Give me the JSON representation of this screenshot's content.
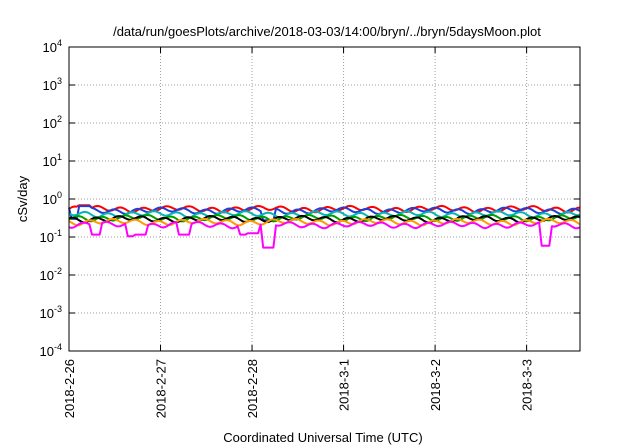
{
  "chart_data": {
    "type": "line",
    "title": "/data/run/goesPlots/archive/2018-03-03/14:00/bryn/../bryn/5daysMoon.plot",
    "xlabel": "Coordinated Universal Time (UTC)",
    "ylabel": "cSv/day",
    "yscale": "log",
    "ylim": [
      0.0001,
      10000
    ],
    "xlim": [
      "2018-02-26T00:00",
      "2018-03-03T14:00"
    ],
    "grid": true,
    "yticks": [
      {
        "value": 0.0001,
        "base": "10",
        "exp": "-4"
      },
      {
        "value": 0.001,
        "base": "10",
        "exp": "-3"
      },
      {
        "value": 0.01,
        "base": "10",
        "exp": "-2"
      },
      {
        "value": 0.1,
        "base": "10",
        "exp": "-1"
      },
      {
        "value": 1,
        "base": "10",
        "exp": "0"
      },
      {
        "value": 10,
        "base": "10",
        "exp": "1"
      },
      {
        "value": 100,
        "base": "10",
        "exp": "2"
      },
      {
        "value": 1000,
        "base": "10",
        "exp": "3"
      },
      {
        "value": 10000,
        "base": "10",
        "exp": "4"
      }
    ],
    "xticks": [
      {
        "value": "2018-02-26T00:00",
        "label": "2018-2-26"
      },
      {
        "value": "2018-02-27T00:00",
        "label": "2018-2-27"
      },
      {
        "value": "2018-02-28T00:00",
        "label": "2018-2-28"
      },
      {
        "value": "2018-03-01T00:00",
        "label": "2018-3-1"
      },
      {
        "value": "2018-03-02T00:00",
        "label": "2018-3-2"
      },
      {
        "value": "2018-03-03T00:00",
        "label": "2018-3-3"
      }
    ],
    "series": [
      {
        "color": "#ff0000",
        "base": 0.55,
        "spikes": [
          {
            "t": "2018-02-26T04:00",
            "f": 1.25
          }
        ]
      },
      {
        "color": "#1f3fd8",
        "base": 0.5,
        "spikes": [
          {
            "t": "2018-02-26T02:00",
            "f": 0.6
          },
          {
            "t": "2018-02-26T04:00",
            "f": 1.3
          },
          {
            "t": "2018-02-28T04:00",
            "f": 0.55
          }
        ]
      },
      {
        "color": "#00b8b8",
        "base": 0.4,
        "spikes": []
      },
      {
        "color": "#00a000",
        "base": 0.32,
        "spikes": []
      },
      {
        "color": "#000000",
        "base": 0.3,
        "spikes": []
      },
      {
        "color": "#ff9900",
        "base": 0.25,
        "spikes": []
      },
      {
        "color": "#ff00ff",
        "base": 0.21,
        "spikes": [
          {
            "t": "2018-02-26T07:00",
            "f": 0.55
          },
          {
            "t": "2018-02-26T17:00",
            "f": 0.5
          },
          {
            "t": "2018-02-26T19:00",
            "f": 0.55
          },
          {
            "t": "2018-02-27T06:00",
            "f": 0.55
          },
          {
            "t": "2018-02-27T22:00",
            "f": 0.55
          },
          {
            "t": "2018-02-28T00:00",
            "f": 0.6
          },
          {
            "t": "2018-02-28T04:00",
            "f": 0.25
          },
          {
            "t": "2018-03-03T05:00",
            "f": 0.28
          }
        ]
      }
    ]
  }
}
